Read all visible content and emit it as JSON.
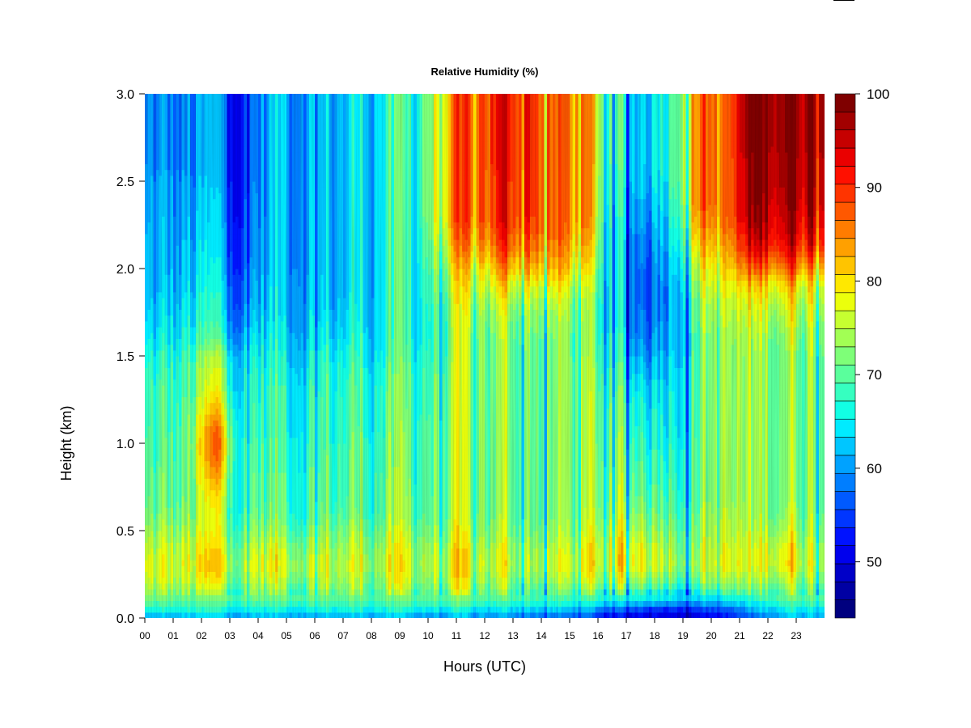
{
  "chart_data": {
    "type": "heatmap",
    "title": "Relative Humidity (%)",
    "xlabel": "Hours (UTC)",
    "ylabel": "Height (km)",
    "xlim": [
      0,
      24
    ],
    "ylim": [
      0,
      3
    ],
    "x_tick_labels": [
      "00",
      "01",
      "02",
      "03",
      "04",
      "05",
      "06",
      "07",
      "08",
      "09",
      "10",
      "11",
      "12",
      "13",
      "14",
      "15",
      "16",
      "17",
      "18",
      "19",
      "20",
      "21",
      "22",
      "23"
    ],
    "y_ticks": [
      0.0,
      0.5,
      1.0,
      1.5,
      2.0,
      2.5,
      3.0
    ],
    "y_tick_labels": [
      "0.0",
      "0.5",
      "1.0",
      "1.5",
      "2.0",
      "2.5",
      "3.0"
    ],
    "colorbar": {
      "min": 44,
      "max": 100,
      "ticks": [
        50,
        60,
        70,
        80,
        90,
        100
      ],
      "tick_labels": [
        "50",
        "60",
        "70",
        "80",
        "90",
        "100"
      ],
      "colors": [
        "#00007f",
        "#0000a3",
        "#0000c8",
        "#0000ed",
        "#0012ff",
        "#0036ff",
        "#005aff",
        "#007eff",
        "#00a2ff",
        "#00c6ff",
        "#00ebff",
        "#12ffe4",
        "#36ffc0",
        "#5aff9c",
        "#7eff78",
        "#a2ff54",
        "#c6ff30",
        "#ebff0c",
        "#ffe800",
        "#ffc400",
        "#ffa000",
        "#ff7c00",
        "#ff5800",
        "#ff3400",
        "#ff1000",
        "#ea0000",
        "#c60000",
        "#a20000",
        "#7f0000"
      ]
    },
    "height_levels_km": [
      0.0,
      0.05,
      0.1,
      0.2,
      0.3,
      0.4,
      0.5,
      0.6,
      0.7,
      0.8,
      0.9,
      1.0,
      1.1,
      1.2,
      1.3,
      1.4,
      1.5,
      1.6,
      1.7,
      1.8,
      1.9,
      2.0,
      2.1,
      2.2,
      2.3,
      2.4,
      2.5,
      2.6,
      2.7,
      2.8,
      2.9,
      3.0
    ],
    "hourly_profiles_rh": [
      [
        60,
        66,
        70,
        74,
        76,
        74,
        72,
        70,
        69,
        69,
        68,
        68,
        67,
        67,
        67,
        66,
        65,
        63,
        62,
        61,
        60,
        60,
        60,
        60,
        59,
        59,
        59,
        58,
        58,
        58,
        58,
        58
      ],
      [
        61,
        66,
        70,
        74,
        76,
        75,
        73,
        71,
        70,
        70,
        70,
        70,
        69,
        69,
        68,
        68,
        67,
        65,
        64,
        63,
        62,
        61,
        61,
        60,
        60,
        59,
        59,
        58,
        58,
        58,
        58,
        58
      ],
      [
        62,
        67,
        71,
        76,
        80,
        78,
        76,
        76,
        78,
        81,
        84,
        86,
        84,
        80,
        77,
        75,
        73,
        68,
        66,
        65,
        64,
        63,
        62,
        62,
        61,
        61,
        60,
        60,
        60,
        60,
        60,
        60
      ],
      [
        61,
        66,
        70,
        74,
        76,
        74,
        72,
        70,
        69,
        69,
        68,
        68,
        67,
        67,
        66,
        66,
        65,
        63,
        61,
        60,
        59,
        58,
        57,
        57,
        56,
        56,
        55,
        55,
        55,
        55,
        55,
        55
      ],
      [
        61,
        66,
        70,
        75,
        78,
        76,
        73,
        71,
        70,
        70,
        69,
        69,
        68,
        68,
        68,
        67,
        66,
        65,
        64,
        63,
        63,
        62,
        62,
        62,
        62,
        62,
        62,
        62,
        62,
        62,
        62,
        62
      ],
      [
        61,
        66,
        70,
        74,
        77,
        75,
        72,
        70,
        70,
        70,
        69,
        69,
        68,
        68,
        68,
        67,
        66,
        65,
        64,
        64,
        64,
        63,
        63,
        63,
        63,
        63,
        63,
        63,
        63,
        63,
        63,
        63
      ],
      [
        61,
        66,
        70,
        74,
        76,
        74,
        72,
        70,
        69,
        69,
        69,
        68,
        68,
        68,
        67,
        67,
        66,
        64,
        63,
        62,
        62,
        61,
        61,
        61,
        61,
        61,
        61,
        61,
        61,
        61,
        61,
        61
      ],
      [
        61,
        66,
        70,
        74,
        76,
        75,
        73,
        71,
        70,
        70,
        70,
        70,
        69,
        69,
        69,
        68,
        67,
        66,
        65,
        65,
        64,
        64,
        64,
        64,
        64,
        64,
        64,
        64,
        64,
        64,
        64,
        64
      ],
      [
        61,
        66,
        70,
        74,
        76,
        75,
        73,
        71,
        71,
        71,
        70,
        70,
        69,
        69,
        69,
        68,
        67,
        66,
        66,
        66,
        66,
        66,
        66,
        66,
        66,
        66,
        66,
        66,
        66,
        66,
        66,
        66
      ],
      [
        60,
        66,
        70,
        74,
        76,
        75,
        73,
        71,
        71,
        70,
        70,
        70,
        70,
        69,
        69,
        69,
        68,
        67,
        67,
        67,
        67,
        67,
        67,
        67,
        67,
        67,
        67,
        67,
        67,
        67,
        67,
        67
      ],
      [
        60,
        65,
        70,
        74,
        76,
        75,
        73,
        72,
        72,
        72,
        72,
        72,
        72,
        71,
        71,
        71,
        70,
        70,
        70,
        71,
        72,
        74,
        76,
        78,
        80,
        80,
        80,
        80,
        80,
        80,
        80,
        80
      ],
      [
        60,
        65,
        70,
        74,
        76,
        75,
        73,
        72,
        72,
        72,
        72,
        72,
        72,
        72,
        72,
        72,
        72,
        72,
        73,
        74,
        76,
        78,
        82,
        84,
        86,
        86,
        86,
        86,
        86,
        86,
        86,
        86
      ],
      [
        59,
        64,
        69,
        73,
        76,
        75,
        73,
        72,
        72,
        72,
        72,
        72,
        72,
        72,
        72,
        72,
        72,
        72,
        73,
        75,
        78,
        82,
        86,
        88,
        90,
        90,
        90,
        91,
        91,
        91,
        91,
        91
      ],
      [
        58,
        64,
        69,
        73,
        76,
        75,
        73,
        72,
        72,
        72,
        72,
        72,
        72,
        72,
        72,
        72,
        72,
        73,
        74,
        76,
        79,
        84,
        88,
        90,
        92,
        92,
        92,
        92,
        92,
        92,
        92,
        92
      ],
      [
        57,
        63,
        68,
        73,
        76,
        75,
        73,
        72,
        72,
        72,
        72,
        72,
        72,
        72,
        72,
        72,
        72,
        72,
        73,
        75,
        78,
        82,
        84,
        86,
        86,
        86,
        86,
        86,
        86,
        86,
        86,
        86
      ],
      [
        55,
        61,
        67,
        73,
        76,
        75,
        73,
        72,
        72,
        72,
        72,
        72,
        72,
        72,
        72,
        72,
        71,
        71,
        71,
        72,
        74,
        77,
        80,
        82,
        84,
        84,
        84,
        84,
        84,
        84,
        84,
        84
      ],
      [
        52,
        58,
        66,
        74,
        78,
        78,
        76,
        74,
        73,
        73,
        72,
        72,
        71,
        71,
        70,
        69,
        68,
        67,
        66,
        66,
        66,
        66,
        66,
        66,
        66,
        67,
        67,
        68,
        68,
        68,
        68,
        68
      ],
      [
        50,
        56,
        65,
        74,
        80,
        79,
        76,
        74,
        72,
        71,
        70,
        69,
        68,
        67,
        66,
        64,
        62,
        60,
        59,
        58,
        58,
        58,
        59,
        60,
        61,
        62,
        63,
        64,
        64,
        64,
        64,
        64
      ],
      [
        50,
        55,
        64,
        73,
        78,
        77,
        75,
        73,
        72,
        71,
        70,
        69,
        68,
        68,
        67,
        66,
        65,
        64,
        63,
        63,
        63,
        64,
        65,
        66,
        67,
        68,
        69,
        70,
        70,
        70,
        70,
        70
      ],
      [
        50,
        55,
        63,
        72,
        76,
        75,
        74,
        73,
        72,
        72,
        72,
        72,
        72,
        72,
        72,
        72,
        72,
        72,
        73,
        74,
        76,
        78,
        81,
        84,
        86,
        88,
        88,
        88,
        88,
        88,
        88,
        88
      ],
      [
        51,
        56,
        63,
        72,
        76,
        75,
        74,
        73,
        72,
        72,
        72,
        72,
        72,
        72,
        72,
        72,
        72,
        72,
        73,
        74,
        76,
        78,
        80,
        82,
        84,
        84,
        84,
        84,
        84,
        84,
        84,
        84
      ],
      [
        56,
        61,
        66,
        72,
        76,
        76,
        74,
        73,
        73,
        73,
        73,
        73,
        73,
        73,
        73,
        73,
        73,
        74,
        75,
        77,
        80,
        86,
        92,
        95,
        97,
        98,
        99,
        99,
        100,
        100,
        100,
        100
      ],
      [
        62,
        66,
        70,
        76,
        81,
        80,
        77,
        75,
        74,
        74,
        74,
        74,
        74,
        74,
        74,
        74,
        74,
        75,
        77,
        79,
        82,
        88,
        93,
        96,
        97,
        98,
        99,
        99,
        100,
        100,
        100,
        100
      ],
      [
        62,
        66,
        70,
        74,
        78,
        77,
        75,
        74,
        74,
        74,
        74,
        74,
        74,
        74,
        74,
        74,
        74,
        75,
        76,
        78,
        80,
        86,
        92,
        95,
        97,
        98,
        99,
        99,
        100,
        100,
        100,
        100
      ]
    ]
  }
}
